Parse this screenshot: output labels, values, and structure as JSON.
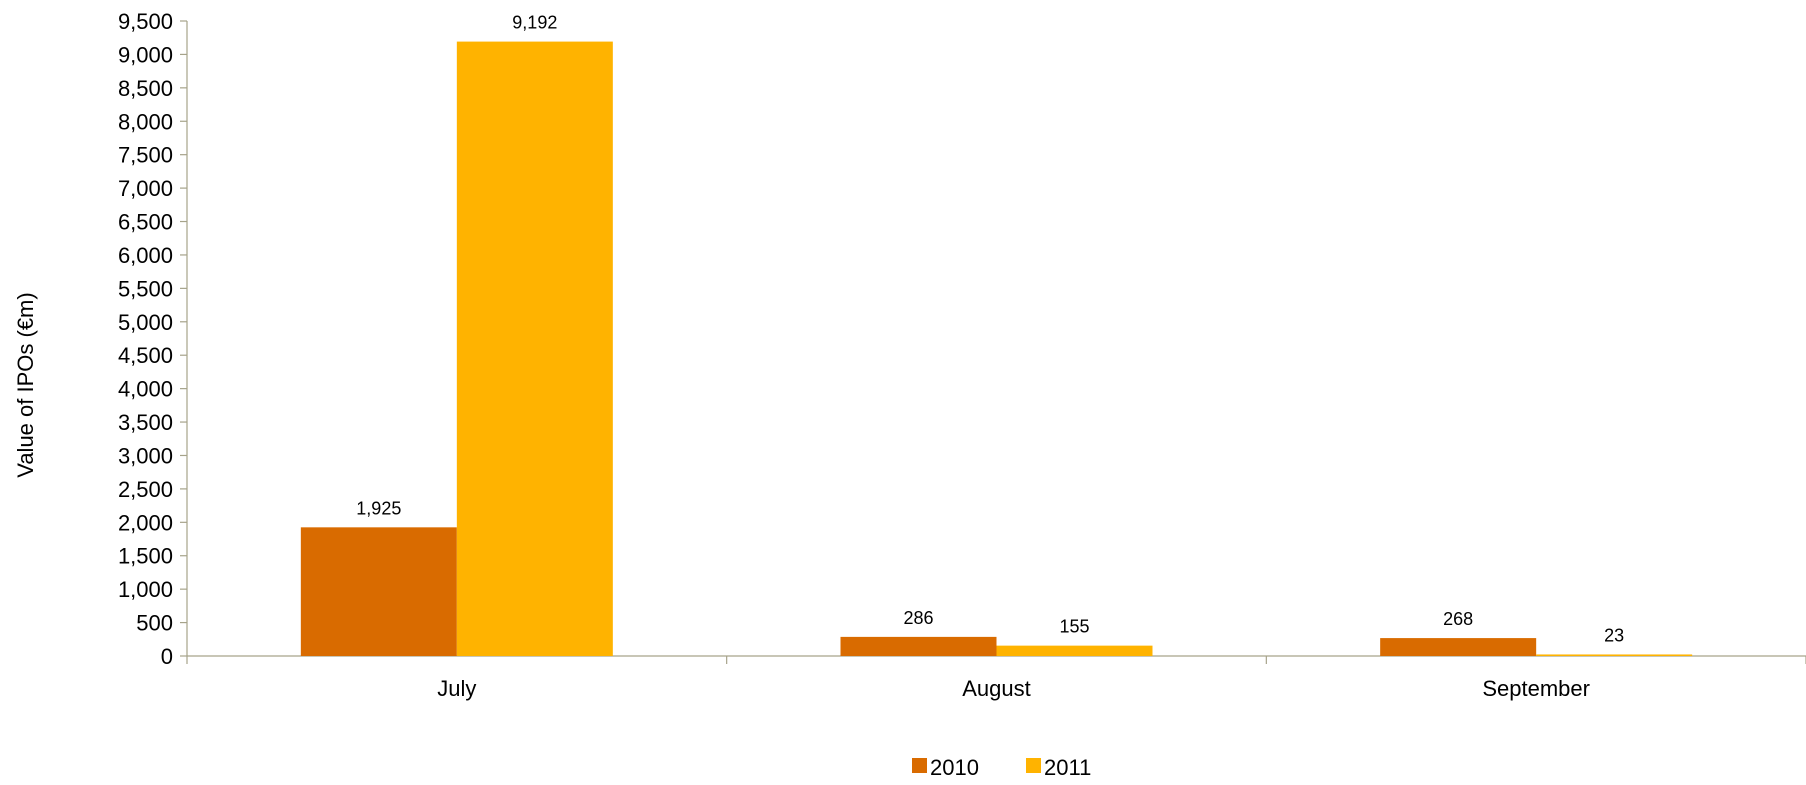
{
  "chart_data": {
    "type": "bar",
    "title": "",
    "xlabel": "",
    "ylabel": "Value of IPOs (€m)",
    "categories": [
      "July",
      "August",
      "September"
    ],
    "series": [
      {
        "name": "2010",
        "values": [
          1925,
          286,
          268
        ],
        "labels": [
          "1,925",
          "286",
          "268"
        ],
        "color": "#D96B00"
      },
      {
        "name": "2011",
        "values": [
          9192,
          155,
          23
        ],
        "labels": [
          "9,192",
          "155",
          "23"
        ],
        "color": "#FFB300"
      }
    ],
    "ylim": [
      0,
      9500
    ],
    "yticks": [
      0,
      500,
      1000,
      1500,
      2000,
      2500,
      3000,
      3500,
      4000,
      4500,
      5000,
      5500,
      6000,
      6500,
      7000,
      7500,
      8000,
      8500,
      9000,
      9500
    ],
    "ytick_labels": [
      "0",
      "500",
      "1,000",
      "1,500",
      "2,000",
      "2,500",
      "3,000",
      "3,500",
      "4,000",
      "4,500",
      "5,000",
      "5,500",
      "6,000",
      "6,500",
      "7,000",
      "7,500",
      "8,000",
      "8,500",
      "9,000",
      "9,500"
    ],
    "grid": false,
    "legend_position": "bottom-center",
    "axis_color": "#A6A38A"
  }
}
